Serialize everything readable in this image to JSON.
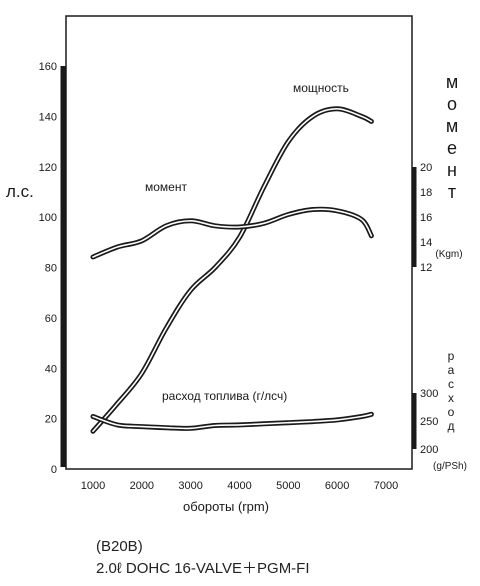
{
  "chart_data": {
    "type": "line",
    "x": [
      1000,
      1500,
      2000,
      2500,
      3000,
      3500,
      4000,
      4500,
      5000,
      5500,
      6000,
      6500,
      6700
    ],
    "xlabel": "обороты (rpm)",
    "xticks": [
      "1000",
      "2000",
      "3000",
      "4000",
      "5000",
      "6000",
      "7000"
    ],
    "xlim": [
      500,
      7500
    ],
    "grid": false,
    "left_axis": {
      "label": "л.с.",
      "ticks": [
        "0",
        "20",
        "40",
        "60",
        "80",
        "100",
        "120",
        "140",
        "160"
      ],
      "ylim": [
        0,
        160
      ]
    },
    "torque_axis": {
      "label": "момент",
      "unit": "(Kgm)",
      "ticks": [
        "12",
        "14",
        "16",
        "18",
        "20"
      ],
      "ylim": [
        12,
        20
      ]
    },
    "consumption_axis": {
      "label": "расход",
      "unit": "(g/PSh)",
      "ticks": [
        "200",
        "250",
        "300"
      ],
      "ylim": [
        200,
        300
      ]
    },
    "series": [
      {
        "name": "мощность",
        "axis": "left_axis",
        "values": [
          15,
          26,
          38,
          56,
          71,
          80,
          92,
          112,
          130,
          140,
          143,
          140,
          138
        ]
      },
      {
        "name": "момент",
        "axis": "torque_axis",
        "values": [
          12.8,
          13.6,
          14.1,
          15.3,
          15.7,
          15.3,
          15.2,
          15.5,
          16.2,
          16.6,
          16.5,
          15.8,
          14.5
        ]
      },
      {
        "name": "расход топлива (г/лсч)",
        "axis": "consumption_axis",
        "values": [
          258,
          243,
          240,
          238,
          237,
          242,
          243,
          245,
          247,
          249,
          252,
          258,
          262
        ]
      }
    ]
  },
  "captions": {
    "model": "(B20B)",
    "engine": "2.0ℓ  DOHC 16-VALVE＋PGM-FI"
  },
  "colors": {
    "line": "#1a1a1a",
    "background": "#ffffff"
  }
}
